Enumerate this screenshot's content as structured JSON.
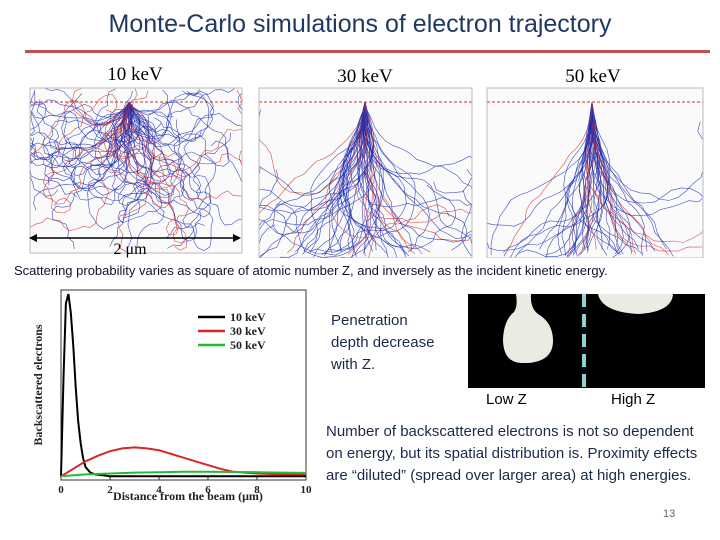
{
  "slide": {
    "title": "Monte-Carlo simulations of electron trajectory",
    "caption": "Scattering probability varies as square of atomic number Z, and inversely as the incident kinetic energy.",
    "penetration_text": "Penetration depth decrease with Z.",
    "low_z_label": "Low Z",
    "high_z_label": "High Z",
    "backscatter_text": "Number of backscattered electrons is not so dependent on energy, but its spatial distribution is. Proximity effects are “diluted” (spread over larger area) at high energies.",
    "page_number": "13"
  },
  "simulations": {
    "panels": [
      {
        "label": "10 keV"
      },
      {
        "label": "30 keV"
      },
      {
        "label": "50 keV"
      }
    ],
    "scale_label": "2 μm",
    "colors": {
      "electron": "#1f2fb4",
      "backscatter": "#d0302a"
    }
  },
  "chart_data": {
    "type": "line",
    "xlabel": "Distance from the beam (μm)",
    "ylabel": "Backscattered electrons",
    "xlim": [
      0,
      10
    ],
    "xticks": [
      "0",
      "2",
      "4",
      "6",
      "8",
      "10"
    ],
    "legend_position": "top-right",
    "series": [
      {
        "name": "10 keV",
        "color": "#000000",
        "x": [
          0,
          0.1,
          0.2,
          0.3,
          0.4,
          0.5,
          0.6,
          0.7,
          0.8,
          0.9,
          1.0,
          1.2,
          1.4,
          1.7,
          2.0,
          3.0,
          5.0,
          10.0
        ],
        "y": [
          0.02,
          0.55,
          0.95,
          1.0,
          0.9,
          0.72,
          0.5,
          0.32,
          0.2,
          0.12,
          0.07,
          0.04,
          0.03,
          0.025,
          0.02,
          0.02,
          0.02,
          0.02
        ]
      },
      {
        "name": "30 keV",
        "color": "#d62728",
        "x": [
          0,
          0.5,
          1.0,
          1.5,
          2.0,
          2.5,
          3.0,
          3.5,
          4.0,
          4.5,
          5.0,
          5.5,
          6.0,
          6.5,
          7.0,
          8.0,
          9.0,
          10.0
        ],
        "y": [
          0.02,
          0.06,
          0.1,
          0.13,
          0.155,
          0.17,
          0.175,
          0.17,
          0.16,
          0.14,
          0.12,
          0.1,
          0.08,
          0.06,
          0.045,
          0.035,
          0.03,
          0.03
        ]
      },
      {
        "name": "50 keV",
        "color": "#22bb33",
        "x": [
          0,
          1,
          2,
          3,
          4,
          5,
          6,
          7,
          8,
          9,
          10
        ],
        "y": [
          0.02,
          0.03,
          0.035,
          0.04,
          0.042,
          0.044,
          0.044,
          0.043,
          0.042,
          0.04,
          0.038
        ]
      }
    ]
  }
}
